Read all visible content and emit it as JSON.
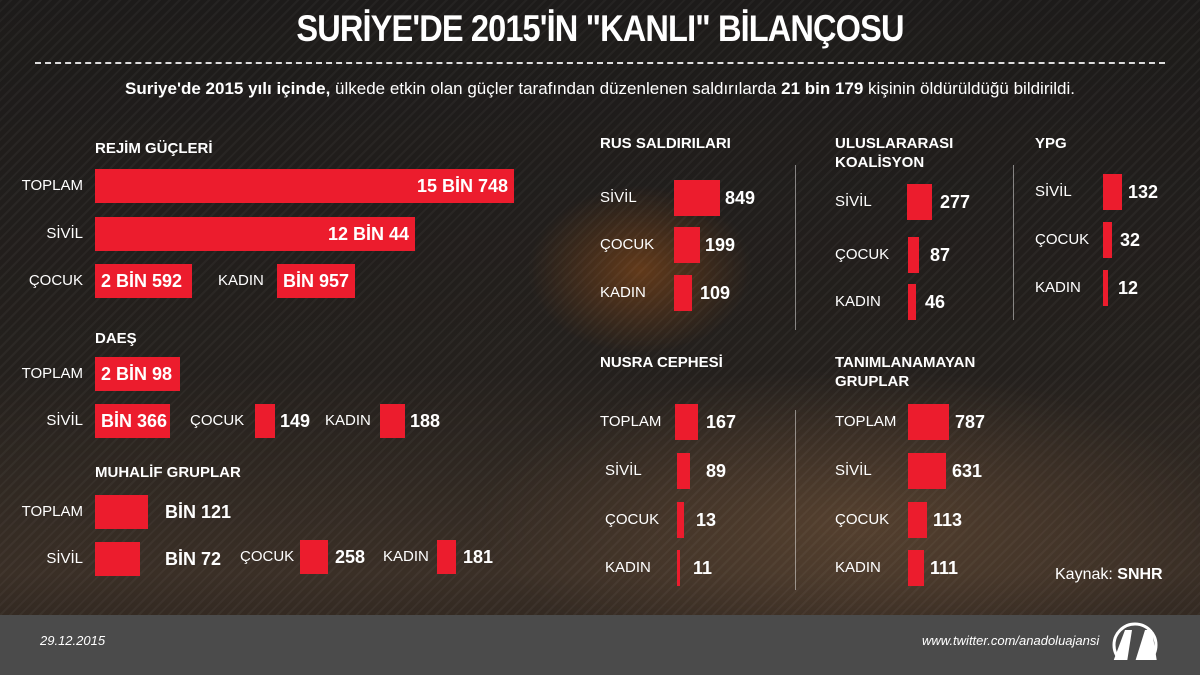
{
  "title": "SURİYE'DE 2015'İN \"KANLI\" BİLANÇOSU",
  "subtitle": {
    "bold1": "Suriye'de 2015 yılı içinde,",
    "text1": " ülkede etkin olan güçler tarafından düzenlenen saldırılarda ",
    "bold2": "21 bin 179",
    "text2": " kişinin öldürüldüğü bildirildi."
  },
  "source": {
    "label": "Kaynak:",
    "value": "SNHR"
  },
  "footer": {
    "date": "29.12.2015",
    "url": "www.twitter.com/anadoluajansi",
    "logo_text": "AA"
  },
  "colors": {
    "bar": "#ec1c2d",
    "footer": "#4b4b4b"
  },
  "chart_data": {
    "type": "bar",
    "groups": [
      {
        "name": "REJİM GÜÇLERİ",
        "items": [
          {
            "label": "TOPLAM",
            "value": 15748,
            "text": "15 BİN 748"
          },
          {
            "label": "SİVİL",
            "value": 12044,
            "text": "12 BİN 44"
          },
          {
            "label": "ÇOCUK",
            "value": 2592,
            "text": "2 BİN 592"
          },
          {
            "label": "KADIN",
            "value": 1957,
            "text": "BİN 957"
          }
        ]
      },
      {
        "name": "DAEŞ",
        "items": [
          {
            "label": "TOPLAM",
            "value": 2098,
            "text": "2 BİN 98"
          },
          {
            "label": "SİVİL",
            "value": 1366,
            "text": "BİN 366"
          },
          {
            "label": "ÇOCUK",
            "value": 149,
            "text": "149"
          },
          {
            "label": "KADIN",
            "value": 188,
            "text": "188"
          }
        ]
      },
      {
        "name": "MUHALİF GRUPLAR",
        "items": [
          {
            "label": "TOPLAM",
            "value": 1121,
            "text": "BİN 121"
          },
          {
            "label": "SİVİL",
            "value": 1072,
            "text": "BİN 72"
          },
          {
            "label": "ÇOCUK",
            "value": 258,
            "text": "258"
          },
          {
            "label": "KADIN",
            "value": 181,
            "text": "181"
          }
        ]
      },
      {
        "name": "RUS SALDIRILARI",
        "items": [
          {
            "label": "SİVİL",
            "value": 849,
            "text": "849"
          },
          {
            "label": "ÇOCUK",
            "value": 199,
            "text": "199"
          },
          {
            "label": "KADIN",
            "value": 109,
            "text": "109"
          }
        ]
      },
      {
        "name": "ULUSLARARASI KOALİSYON",
        "items": [
          {
            "label": "SİVİL",
            "value": 277,
            "text": "277"
          },
          {
            "label": "ÇOCUK",
            "value": 87,
            "text": "87"
          },
          {
            "label": "KADIN",
            "value": 46,
            "text": "46"
          }
        ]
      },
      {
        "name": "YPG",
        "items": [
          {
            "label": "SİVİL",
            "value": 132,
            "text": "132"
          },
          {
            "label": "ÇOCUK",
            "value": 32,
            "text": "32"
          },
          {
            "label": "KADIN",
            "value": 12,
            "text": "12"
          }
        ]
      },
      {
        "name": "NUSRA CEPHESİ",
        "items": [
          {
            "label": "TOPLAM",
            "value": 167,
            "text": "167"
          },
          {
            "label": "SİVİL",
            "value": 89,
            "text": "89"
          },
          {
            "label": "ÇOCUK",
            "value": 13,
            "text": "13"
          },
          {
            "label": "KADIN",
            "value": 11,
            "text": "11"
          }
        ]
      },
      {
        "name": "TANIMLANAMAYAN GRUPLAR",
        "items": [
          {
            "label": "TOPLAM",
            "value": 787,
            "text": "787"
          },
          {
            "label": "SİVİL",
            "value": 631,
            "text": "631"
          },
          {
            "label": "ÇOCUK",
            "value": 113,
            "text": "113"
          },
          {
            "label": "KADIN",
            "value": 111,
            "text": "111"
          }
        ]
      }
    ]
  }
}
